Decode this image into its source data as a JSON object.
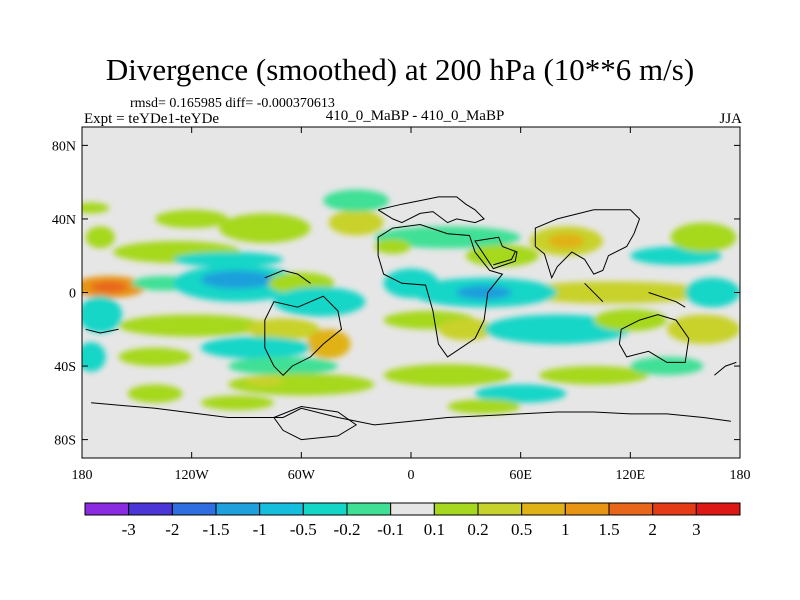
{
  "header": {
    "title": "Divergence (smoothed) at 200 hPa (10**6 m/s)",
    "stats": "rmsd= 0.165985  diff= -0.000370613",
    "experiment": "Expt = teYDe1-teYDe",
    "center_label": "410_0_MaBP - 410_0_MaBP",
    "season": "JJA"
  },
  "chart_data": {
    "type": "heatmap",
    "title": "Divergence (smoothed) at 200 hPa (10**6 m/s)",
    "x_axis": {
      "range": [
        -180,
        180
      ],
      "ticks": [
        -180,
        -120,
        -60,
        0,
        60,
        120,
        180
      ],
      "tick_labels": [
        "180",
        "120W",
        "60W",
        "0",
        "60E",
        "120E",
        "180"
      ]
    },
    "y_axis": {
      "range": [
        -90,
        90
      ],
      "ticks": [
        80,
        40,
        0,
        -40,
        -80
      ],
      "tick_labels": [
        "80N",
        "40N",
        "0",
        "40S",
        "80S"
      ]
    },
    "colorbar": {
      "labels": [
        "-3",
        "-2",
        "-1.5",
        "-1",
        "-0.5",
        "-0.2",
        "-0.1",
        "0.1",
        "0.2",
        "0.5",
        "1",
        "1.5",
        "2",
        "3"
      ],
      "colors": [
        "#8a2be2",
        "#4b35d6",
        "#2f6ee0",
        "#1ea0dc",
        "#16bede",
        "#13d6c7",
        "#3fe096",
        "#e6e6e6",
        "#a6d81f",
        "#c8d22c",
        "#e0b218",
        "#e89414",
        "#e8661a",
        "#e43b16",
        "#dd1616"
      ]
    },
    "background_color": "#e6e6e6",
    "anomaly_blobs": [
      {
        "lon": -175,
        "lat": 46,
        "rlon": 10,
        "rlat": 3,
        "c": 8
      },
      {
        "lon": -170,
        "lat": 30,
        "rlon": 8,
        "rlat": 6,
        "c": 8
      },
      {
        "lon": -120,
        "lat": 40,
        "rlon": 20,
        "rlat": 5,
        "c": 8
      },
      {
        "lon": -80,
        "lat": 35,
        "rlon": 25,
        "rlat": 8,
        "c": 8
      },
      {
        "lon": -30,
        "lat": 38,
        "rlon": 15,
        "rlat": 7,
        "c": 9
      },
      {
        "lon": -30,
        "lat": 50,
        "rlon": 18,
        "rlat": 6,
        "c": 6
      },
      {
        "lon": -128,
        "lat": 22,
        "rlon": 35,
        "rlat": 6,
        "c": 8
      },
      {
        "lon": -100,
        "lat": 18,
        "rlon": 30,
        "rlat": 4,
        "c": 5
      },
      {
        "lon": -165,
        "lat": 3,
        "rlon": 20,
        "rlat": 6,
        "c": 11
      },
      {
        "lon": -165,
        "lat": 3,
        "rlon": 10,
        "rlat": 3,
        "c": 12
      },
      {
        "lon": -135,
        "lat": 5,
        "rlon": 18,
        "rlat": 4,
        "c": 6
      },
      {
        "lon": -95,
        "lat": 5,
        "rlon": 35,
        "rlat": 10,
        "c": 5
      },
      {
        "lon": -95,
        "lat": 7,
        "rlon": 20,
        "rlat": 5,
        "c": 3
      },
      {
        "lon": -60,
        "lat": 5,
        "rlon": 18,
        "rlat": 6,
        "c": 8
      },
      {
        "lon": -50,
        "lat": -5,
        "rlon": 25,
        "rlat": 8,
        "c": 5
      },
      {
        "lon": -170,
        "lat": -12,
        "rlon": 12,
        "rlat": 10,
        "c": 5
      },
      {
        "lon": -120,
        "lat": -18,
        "rlon": 40,
        "rlat": 6,
        "c": 8
      },
      {
        "lon": -70,
        "lat": -20,
        "rlon": 20,
        "rlat": 6,
        "c": 9
      },
      {
        "lon": -45,
        "lat": -28,
        "rlon": 12,
        "rlat": 8,
        "c": 10
      },
      {
        "lon": -85,
        "lat": -30,
        "rlon": 30,
        "rlat": 6,
        "c": 5
      },
      {
        "lon": -140,
        "lat": -35,
        "rlon": 20,
        "rlat": 5,
        "c": 8
      },
      {
        "lon": -175,
        "lat": -35,
        "rlon": 8,
        "rlat": 8,
        "c": 5
      },
      {
        "lon": -70,
        "lat": -40,
        "rlon": 30,
        "rlat": 5,
        "c": 6
      },
      {
        "lon": -60,
        "lat": -50,
        "rlon": 40,
        "rlat": 6,
        "c": 8
      },
      {
        "lon": -140,
        "lat": -55,
        "rlon": 15,
        "rlat": 5,
        "c": 8
      },
      {
        "lon": -95,
        "lat": -60,
        "rlon": 20,
        "rlat": 4,
        "c": 8
      },
      {
        "lon": -80,
        "lat": -48,
        "rlon": 10,
        "rlat": 3,
        "c": 9
      },
      {
        "lon": 20,
        "lat": 30,
        "rlon": 40,
        "rlat": 6,
        "c": 6
      },
      {
        "lon": -10,
        "lat": 25,
        "rlon": 10,
        "rlat": 4,
        "c": 8
      },
      {
        "lon": 50,
        "lat": 20,
        "rlon": 20,
        "rlat": 6,
        "c": 8
      },
      {
        "lon": 85,
        "lat": 28,
        "rlon": 20,
        "rlat": 8,
        "c": 9
      },
      {
        "lon": 85,
        "lat": 28,
        "rlon": 10,
        "rlat": 4,
        "c": 10
      },
      {
        "lon": 145,
        "lat": 20,
        "rlon": 25,
        "rlat": 5,
        "c": 5
      },
      {
        "lon": 160,
        "lat": 30,
        "rlon": 18,
        "rlat": 8,
        "c": 8
      },
      {
        "lon": 110,
        "lat": 0,
        "rlon": 55,
        "rlat": 6,
        "c": 9
      },
      {
        "lon": 40,
        "lat": 0,
        "rlon": 40,
        "rlat": 8,
        "c": 5
      },
      {
        "lon": 40,
        "lat": 0,
        "rlon": 15,
        "rlat": 4,
        "c": 3
      },
      {
        "lon": 0,
        "lat": 5,
        "rlon": 15,
        "rlat": 8,
        "c": 5
      },
      {
        "lon": 10,
        "lat": -15,
        "rlon": 25,
        "rlat": 5,
        "c": 8
      },
      {
        "lon": 30,
        "lat": -20,
        "rlon": 15,
        "rlat": 6,
        "c": 9
      },
      {
        "lon": 80,
        "lat": -20,
        "rlon": 40,
        "rlat": 8,
        "c": 5
      },
      {
        "lon": 120,
        "lat": -15,
        "rlon": 20,
        "rlat": 6,
        "c": 8
      },
      {
        "lon": 160,
        "lat": -20,
        "rlon": 20,
        "rlat": 8,
        "c": 9
      },
      {
        "lon": 165,
        "lat": 0,
        "rlon": 15,
        "rlat": 8,
        "c": 5
      },
      {
        "lon": 20,
        "lat": -45,
        "rlon": 35,
        "rlat": 6,
        "c": 8
      },
      {
        "lon": 100,
        "lat": -45,
        "rlon": 30,
        "rlat": 5,
        "c": 8
      },
      {
        "lon": 60,
        "lat": -55,
        "rlon": 25,
        "rlat": 5,
        "c": 5
      },
      {
        "lon": 140,
        "lat": -40,
        "rlon": 20,
        "rlat": 5,
        "c": 6
      },
      {
        "lon": 40,
        "lat": -62,
        "rlon": 20,
        "rlat": 4,
        "c": 8
      }
    ],
    "coastlines": [
      [
        [
          -18,
          45
        ],
        [
          -5,
          48
        ],
        [
          5,
          50
        ],
        [
          15,
          52
        ],
        [
          25,
          52
        ],
        [
          30,
          48
        ],
        [
          35,
          45
        ],
        [
          40,
          40
        ],
        [
          35,
          38
        ],
        [
          25,
          40
        ],
        [
          20,
          38
        ],
        [
          12,
          44
        ],
        [
          5,
          43
        ],
        [
          -5,
          38
        ],
        [
          -10,
          40
        ],
        [
          -18,
          45
        ]
      ],
      [
        [
          -18,
          30
        ],
        [
          -10,
          35
        ],
        [
          5,
          37
        ],
        [
          20,
          32
        ],
        [
          32,
          31
        ],
        [
          35,
          22
        ],
        [
          43,
          12
        ],
        [
          50,
          10
        ],
        [
          42,
          0
        ],
        [
          40,
          -15
        ],
        [
          35,
          -25
        ],
        [
          20,
          -35
        ],
        [
          15,
          -28
        ],
        [
          12,
          -10
        ],
        [
          8,
          4
        ],
        [
          -5,
          5
        ],
        [
          -15,
          10
        ],
        [
          -18,
          20
        ],
        [
          -18,
          30
        ]
      ],
      [
        [
          50,
          25
        ],
        [
          58,
          22
        ],
        [
          57,
          17
        ],
        [
          45,
          13
        ],
        [
          35,
          28
        ],
        [
          48,
          30
        ],
        [
          50,
          25
        ]
      ],
      [
        [
          45,
          15
        ],
        [
          55,
          18
        ],
        [
          57,
          22
        ]
      ],
      [
        [
          68,
          25
        ],
        [
          73,
          21
        ],
        [
          77,
          8
        ],
        [
          80,
          14
        ],
        [
          88,
          22
        ],
        [
          95,
          18
        ],
        [
          100,
          10
        ],
        [
          105,
          12
        ],
        [
          108,
          20
        ],
        [
          118,
          25
        ],
        [
          122,
          32
        ],
        [
          125,
          40
        ],
        [
          120,
          45
        ],
        [
          100,
          45
        ],
        [
          80,
          40
        ],
        [
          68,
          35
        ],
        [
          68,
          25
        ]
      ],
      [
        [
          -62,
          -8
        ],
        [
          -48,
          -2
        ],
        [
          -40,
          -10
        ],
        [
          -38,
          -20
        ],
        [
          -48,
          -28
        ],
        [
          -55,
          -35
        ],
        [
          -65,
          -40
        ],
        [
          -70,
          -45
        ],
        [
          -75,
          -40
        ],
        [
          -80,
          -30
        ],
        [
          -80,
          -15
        ],
        [
          -75,
          -5
        ],
        [
          -62,
          -8
        ]
      ],
      [
        [
          -80,
          8
        ],
        [
          -70,
          12
        ],
        [
          -62,
          10
        ],
        [
          -55,
          5
        ]
      ],
      [
        [
          115,
          -20
        ],
        [
          125,
          -15
        ],
        [
          135,
          -12
        ],
        [
          145,
          -15
        ],
        [
          152,
          -25
        ],
        [
          150,
          -38
        ],
        [
          140,
          -38
        ],
        [
          130,
          -32
        ],
        [
          118,
          -35
        ],
        [
          114,
          -28
        ],
        [
          115,
          -20
        ]
      ],
      [
        [
          130,
          0
        ],
        [
          145,
          -5
        ],
        [
          150,
          -8
        ]
      ],
      [
        [
          95,
          5
        ],
        [
          105,
          -5
        ]
      ],
      [
        [
          -175,
          -60
        ],
        [
          -140,
          -63
        ],
        [
          -100,
          -68
        ],
        [
          -70,
          -68
        ],
        [
          -60,
          -63
        ],
        [
          -40,
          -68
        ],
        [
          -20,
          -72
        ],
        [
          0,
          -70
        ],
        [
          20,
          -68
        ],
        [
          40,
          -67
        ],
        [
          60,
          -66
        ],
        [
          80,
          -65
        ],
        [
          100,
          -65
        ],
        [
          120,
          -66
        ],
        [
          140,
          -66
        ],
        [
          160,
          -68
        ],
        [
          175,
          -70
        ]
      ],
      [
        [
          -75,
          -68
        ],
        [
          -70,
          -75
        ],
        [
          -60,
          -80
        ],
        [
          -40,
          -78
        ],
        [
          -30,
          -72
        ],
        [
          -40,
          -65
        ],
        [
          -60,
          -62
        ],
        [
          -75,
          -68
        ]
      ],
      [
        [
          166,
          -45
        ],
        [
          172,
          -40
        ],
        [
          178,
          -38
        ]
      ],
      [
        [
          -178,
          -20
        ],
        [
          -170,
          -22
        ],
        [
          -160,
          -20
        ]
      ]
    ]
  }
}
